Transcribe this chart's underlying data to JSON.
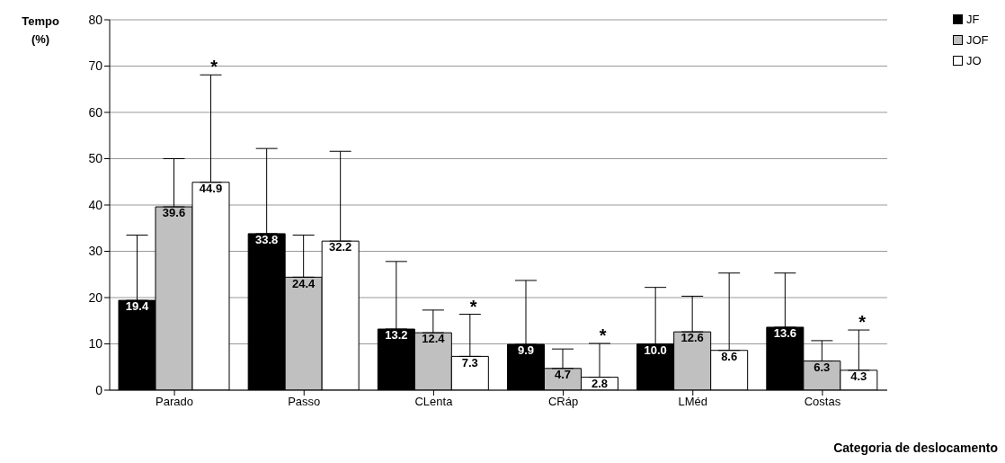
{
  "chart_data": {
    "type": "bar",
    "ylabel": "Tempo (%)",
    "xlabel": "Categoria de deslocamento",
    "categories": [
      "Parado",
      "Passo",
      "CLenta",
      "CRáp",
      "LMéd",
      "Costas"
    ],
    "series": [
      {
        "name": "JF",
        "color": "#000000",
        "values": [
          19.4,
          33.8,
          13.2,
          9.9,
          10.0,
          13.6
        ],
        "value_labels": [
          "19.4",
          "33.8",
          "13.2",
          "9.9",
          "10.0",
          "13.6"
        ],
        "errors": [
          [
            19.4,
            33.5
          ],
          [
            33.8,
            52.2
          ],
          [
            13.2,
            27.8
          ],
          [
            9.9,
            23.7
          ],
          [
            10.0,
            22.2
          ],
          [
            13.6,
            25.3
          ]
        ]
      },
      {
        "name": "JOF",
        "color": "#c0c0c0",
        "values": [
          39.6,
          24.4,
          12.4,
          4.7,
          12.6,
          6.3
        ],
        "value_labels": [
          "39.6",
          "24.4",
          "12.4",
          "4.7",
          "12.6",
          "6.3"
        ],
        "errors": [
          [
            39.6,
            50.0
          ],
          [
            24.4,
            33.5
          ],
          [
            12.4,
            17.3
          ],
          [
            4.7,
            8.9
          ],
          [
            12.6,
            20.3
          ],
          [
            6.3,
            10.7
          ]
        ]
      },
      {
        "name": "JO",
        "color": "#ffffff",
        "values": [
          44.9,
          32.2,
          7.3,
          2.8,
          8.6,
          4.3
        ],
        "value_labels": [
          "44.9",
          "32.2",
          "7.3",
          "2.8",
          "8.6",
          "4.3"
        ],
        "errors": [
          [
            44.9,
            68.1
          ],
          [
            32.2,
            51.6
          ],
          [
            7.3,
            16.4
          ],
          [
            2.8,
            10.1
          ],
          [
            8.6,
            25.3
          ],
          [
            4.3,
            13.0
          ]
        ]
      }
    ],
    "annotations": [
      "*",
      "*",
      "*",
      "*"
    ],
    "ylim": [
      0,
      80
    ],
    "yticks": [
      0,
      10,
      20,
      30,
      40,
      50,
      60,
      70,
      80
    ],
    "grid": "y",
    "legend": "top right"
  }
}
